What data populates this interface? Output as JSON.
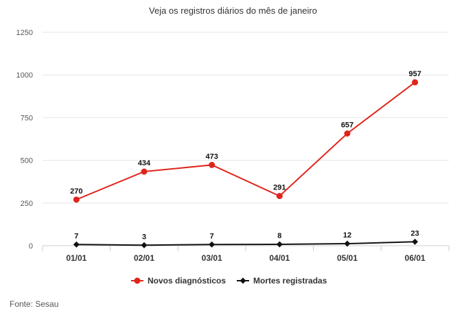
{
  "chart_data": {
    "type": "line",
    "title": "Veja os registros diários do mês de janeiro",
    "xlabel": "",
    "ylabel": "",
    "categories": [
      "01/01",
      "02/01",
      "03/01",
      "04/01",
      "05/01",
      "06/01"
    ],
    "yticks": [
      "0",
      "250",
      "500",
      "750",
      "1000",
      "1250"
    ],
    "ylim": [
      0,
      1250
    ],
    "grid": true,
    "legend_position": "bottom-center",
    "series": [
      {
        "name": "Novos diagnósticos",
        "color": "#e0241b",
        "marker": "circle",
        "values": [
          270,
          434,
          473,
          291,
          657,
          957
        ]
      },
      {
        "name": "Mortes registradas",
        "color": "#111111",
        "marker": "diamond",
        "values": [
          7,
          3,
          7,
          8,
          12,
          23
        ]
      }
    ]
  },
  "source": "Fonte: Sesau"
}
